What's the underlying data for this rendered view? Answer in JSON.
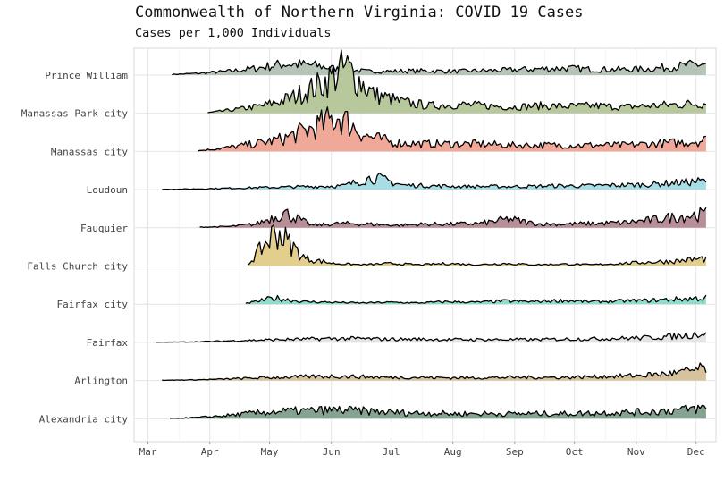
{
  "chart_data": {
    "type": "area",
    "subtype": "ridgeline",
    "title": "Commonwealth of Northern Virginia: COVID 19 Cases",
    "subtitle": "Cases per 1,000 Individuals",
    "xlabel": "",
    "ylabel": "",
    "grid": true,
    "legend": "none",
    "x_ticks": [
      "Mar",
      "Apr",
      "May",
      "Jun",
      "Jul",
      "Aug",
      "Sep",
      "Oct",
      "Nov",
      "Dec"
    ],
    "x_tick_dates": [
      "2020-03-01",
      "2020-04-01",
      "2020-05-01",
      "2020-06-01",
      "2020-07-01",
      "2020-08-01",
      "2020-09-01",
      "2020-10-01",
      "2020-11-01",
      "2020-12-01"
    ],
    "xlim": [
      "2020-02-23",
      "2020-12-11"
    ],
    "series": [
      {
        "name": "Prince William",
        "color": "#b6c4b8",
        "start": "2020-03-13",
        "end": "2020-12-06",
        "values": [
          0.05,
          0.15,
          0.3,
          0.55,
          0.9,
          0.8,
          0.45,
          0.3,
          0.32,
          0.35,
          0.3,
          0.35,
          0.4,
          0.5,
          0.55,
          0.45,
          0.45,
          0.5,
          0.7,
          0.9
        ]
      },
      {
        "name": "Manassas Park city",
        "color": "#b7c99c",
        "start": "2020-03-31",
        "end": "2020-12-06",
        "values": [
          0.05,
          0.3,
          0.6,
          1.2,
          2.2,
          3.6,
          1.5,
          0.9,
          0.6,
          0.7,
          0.6,
          0.5,
          0.6,
          0.55,
          0.6,
          0.5,
          0.6,
          0.7,
          0.8
        ]
      },
      {
        "name": "Manassas city",
        "color": "#f0a898",
        "start": "2020-03-26",
        "end": "2020-12-06",
        "values": [
          0.05,
          0.3,
          0.6,
          1.0,
          1.8,
          2.8,
          1.2,
          0.7,
          0.6,
          0.6,
          0.6,
          0.5,
          0.5,
          0.5,
          0.5,
          0.5,
          0.6,
          0.7,
          0.9
        ]
      },
      {
        "name": "Loudoun",
        "color": "#a9dde5",
        "start": "2020-03-08",
        "end": "2020-12-06",
        "values": [
          0.02,
          0.05,
          0.1,
          0.15,
          0.2,
          0.25,
          0.3,
          1.0,
          0.35,
          0.3,
          0.25,
          0.25,
          0.25,
          0.3,
          0.3,
          0.35,
          0.4,
          0.55,
          0.7
        ]
      },
      {
        "name": "Fauquier",
        "color": "#b88e98",
        "start": "2020-03-27",
        "end": "2020-12-06",
        "values": [
          0.05,
          0.1,
          0.3,
          1.2,
          0.2,
          0.35,
          0.3,
          0.2,
          0.3,
          0.3,
          0.35,
          0.7,
          0.3,
          0.3,
          0.35,
          0.4,
          0.6,
          0.9,
          1.1
        ]
      },
      {
        "name": "Falls Church city",
        "color": "#e2cf8e",
        "start": "2020-04-20",
        "end": "2020-12-06",
        "values": [
          0.1,
          2.8,
          0.6,
          0.2,
          0.1,
          0.2,
          0.1,
          0.2,
          0.1,
          0.2,
          0.1,
          0.15,
          0.1,
          0.2,
          0.3,
          0.4,
          0.6
        ]
      },
      {
        "name": "Fairfax city",
        "color": "#8fdccb",
        "start": "2020-04-19",
        "end": "2020-12-06",
        "values": [
          0.05,
          0.5,
          0.2,
          0.15,
          0.1,
          0.15,
          0.1,
          0.2,
          0.15,
          0.25,
          0.2,
          0.3,
          0.2,
          0.25,
          0.3,
          0.4,
          0.5
        ]
      },
      {
        "name": "Fairfax",
        "color": "#e4e4e4",
        "start": "2020-03-05",
        "end": "2020-12-06",
        "values": [
          0.01,
          0.03,
          0.08,
          0.15,
          0.2,
          0.25,
          0.3,
          0.3,
          0.25,
          0.25,
          0.22,
          0.22,
          0.22,
          0.22,
          0.25,
          0.28,
          0.32,
          0.38,
          0.5,
          0.75
        ]
      },
      {
        "name": "Arlington",
        "color": "#d7c29e",
        "start": "2020-03-08",
        "end": "2020-12-06",
        "values": [
          0.02,
          0.05,
          0.1,
          0.18,
          0.25,
          0.3,
          0.35,
          0.3,
          0.25,
          0.25,
          0.22,
          0.22,
          0.25,
          0.25,
          0.25,
          0.3,
          0.35,
          0.45,
          0.6,
          1.0
        ]
      },
      {
        "name": "Alexandria city",
        "color": "#86a391",
        "start": "2020-03-12",
        "end": "2020-12-06",
        "values": [
          0.02,
          0.1,
          0.25,
          0.45,
          0.6,
          0.65,
          0.7,
          0.6,
          0.5,
          0.45,
          0.4,
          0.4,
          0.4,
          0.4,
          0.4,
          0.45,
          0.5,
          0.55,
          0.7,
          0.85
        ]
      }
    ]
  }
}
